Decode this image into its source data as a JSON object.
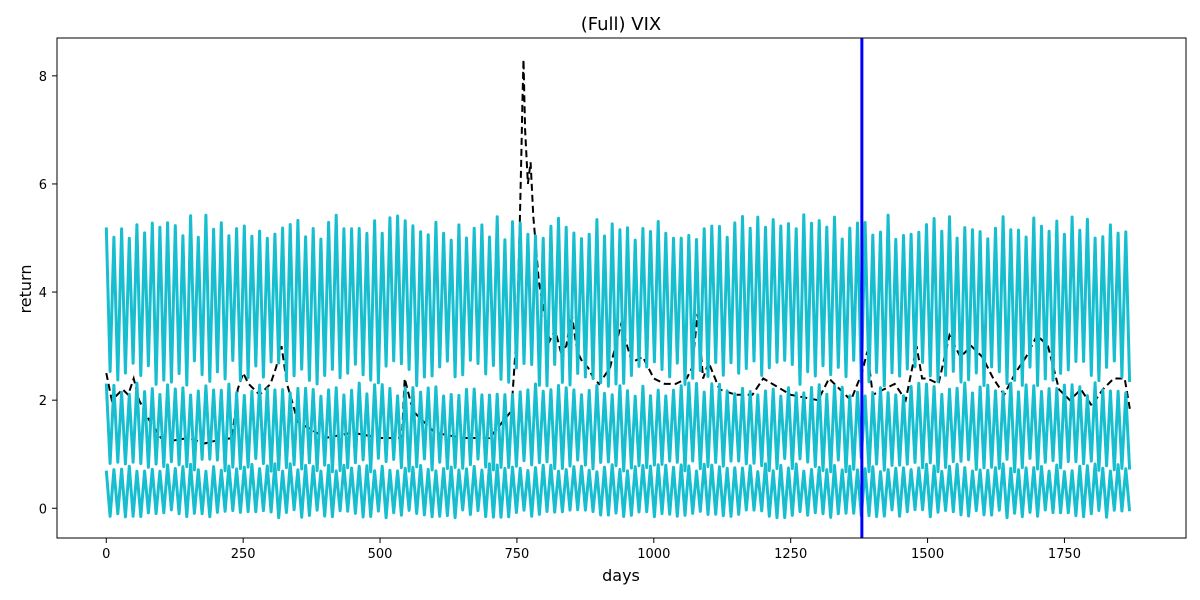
{
  "chart_data": {
    "type": "line",
    "title": "(Full) VIX",
    "xlabel": "days",
    "ylabel": "return",
    "xlim": [
      -90,
      1972
    ],
    "ylim": [
      -0.55,
      8.7
    ],
    "xticks": [
      0,
      250,
      500,
      750,
      1000,
      1250,
      1500,
      1750
    ],
    "yticks": [
      0,
      2,
      4,
      6,
      8
    ],
    "grid": false,
    "legend": "none",
    "vline": {
      "x": 1380,
      "color": "#0000ff"
    },
    "colors": {
      "bands": "#17becf",
      "actual": "#000000"
    },
    "series": [
      {
        "style": "dashed",
        "color": "#000000",
        "x": [
          0,
          10,
          30,
          40,
          50,
          60,
          80,
          100,
          120,
          150,
          180,
          200,
          230,
          240,
          250,
          260,
          280,
          300,
          310,
          320,
          330,
          350,
          400,
          450,
          500,
          540,
          545,
          560,
          600,
          650,
          700,
          740,
          750,
          755,
          758,
          760,
          762,
          765,
          770,
          775,
          780,
          785,
          790,
          800,
          810,
          820,
          830,
          840,
          850,
          860,
          870,
          880,
          890,
          900,
          920,
          940,
          960,
          980,
          1000,
          1020,
          1040,
          1060,
          1070,
          1080,
          1090,
          1100,
          1120,
          1150,
          1180,
          1200,
          1250,
          1300,
          1320,
          1340,
          1360,
          1380,
          1390,
          1400,
          1420,
          1440,
          1460,
          1480,
          1490,
          1500,
          1520,
          1540,
          1560,
          1580,
          1600,
          1620,
          1640,
          1660,
          1680,
          1700,
          1720,
          1740,
          1760,
          1780,
          1800,
          1820,
          1840,
          1860,
          1870
        ],
        "y": [
          2.5,
          2.0,
          2.2,
          2.1,
          2.4,
          2.0,
          1.6,
          1.3,
          1.25,
          1.3,
          1.2,
          1.25,
          1.3,
          2.2,
          2.5,
          2.3,
          2.1,
          2.3,
          2.6,
          3.0,
          2.3,
          1.6,
          1.3,
          1.4,
          1.3,
          1.3,
          2.4,
          1.8,
          1.4,
          1.3,
          1.3,
          1.8,
          3.3,
          5.2,
          6.5,
          7.5,
          8.3,
          7.0,
          6.0,
          6.4,
          5.4,
          4.8,
          4.2,
          3.6,
          3.1,
          3.3,
          2.9,
          3.0,
          3.6,
          2.9,
          2.7,
          2.6,
          2.4,
          2.3,
          2.6,
          3.4,
          2.7,
          2.8,
          2.4,
          2.3,
          2.3,
          2.4,
          2.6,
          3.6,
          2.4,
          2.7,
          2.2,
          2.1,
          2.1,
          2.4,
          2.1,
          2.0,
          2.4,
          2.2,
          2.0,
          2.5,
          2.9,
          2.1,
          2.2,
          2.3,
          2.0,
          3.0,
          2.4,
          2.4,
          2.3,
          3.2,
          2.8,
          3.0,
          2.8,
          2.4,
          2.1,
          2.5,
          2.8,
          3.2,
          3.0,
          2.2,
          2.0,
          2.2,
          1.9,
          2.2,
          2.4,
          2.4,
          1.8
        ]
      },
      {
        "name": "",
        "style": "oscillating",
        "color": "#17becf",
        "low": 2.5,
        "high": 5.2,
        "x_start": 0,
        "x_end": 1875,
        "cycle": 14
      },
      {
        "name": "",
        "style": "oscillating",
        "color": "#17becf",
        "low": 0.8,
        "high": 2.2,
        "x_start": 0,
        "x_end": 1875,
        "cycle": 14
      },
      {
        "name": "",
        "style": "oscillating",
        "color": "#17becf",
        "low": -0.1,
        "high": 0.75,
        "x_start": 0,
        "x_end": 1875,
        "cycle": 14
      }
    ]
  }
}
